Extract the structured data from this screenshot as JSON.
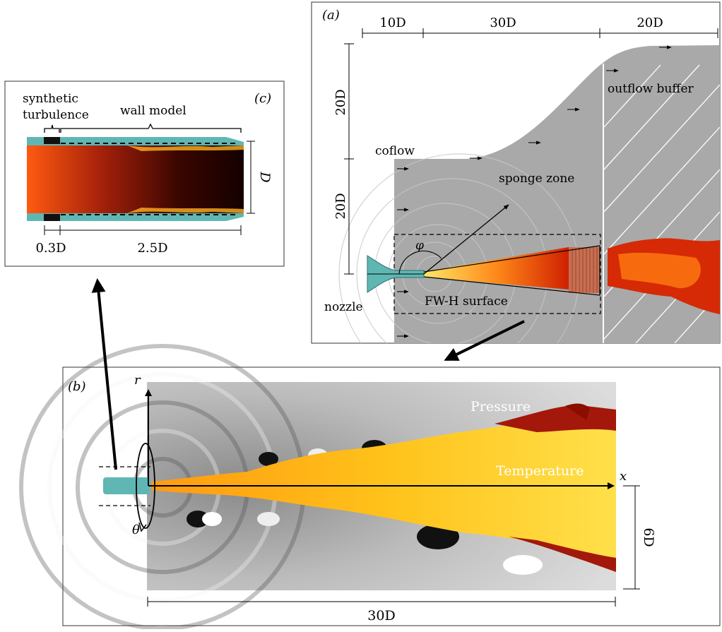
{
  "panel_a": {
    "label": "(a)",
    "dim_top": [
      "10D",
      "30D",
      "20D"
    ],
    "dim_left": [
      "20D",
      "20D"
    ],
    "coflow": "coflow",
    "outflow": "outflow buffer",
    "sponge": "sponge zone",
    "nozzle": "nozzle",
    "fwh": "FW-H surface",
    "phi": "φ"
  },
  "panel_b": {
    "label": "(b)",
    "pressure": "Pressure",
    "temperature": "Temperature",
    "x_axis": "x",
    "r_axis": "r",
    "theta": "θ",
    "dim_bottom": "30D",
    "dim_right": "6D"
  },
  "panel_c": {
    "label": "(c)",
    "synthetic_1": "synthetic",
    "synthetic_2": "turbulence",
    "wall_model": "wall model",
    "dim_d": "D",
    "dim_1": "0.3D",
    "dim_2": "2.5D"
  },
  "colors": {
    "nozzle": "#5fb7b4",
    "domain_gray": "#a9a9a9",
    "jet_hot": "#ffd21f",
    "jet_mid": "#ff5a0a",
    "jet_dark": "#8b0d00"
  }
}
